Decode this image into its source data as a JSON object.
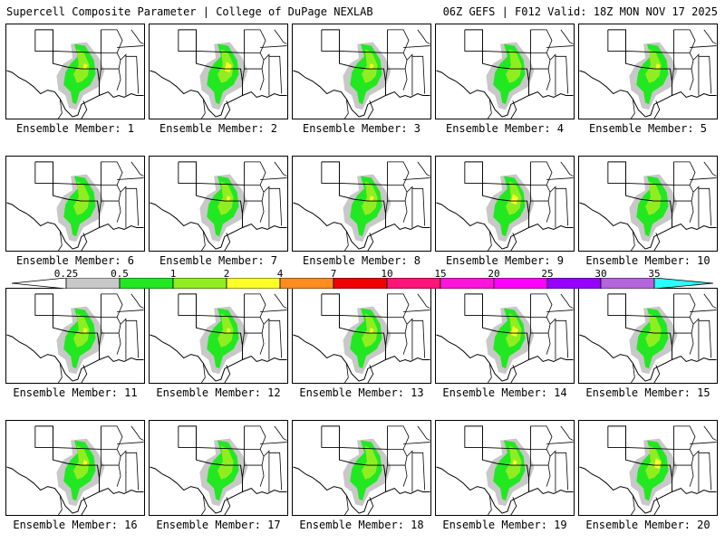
{
  "header": {
    "title": "Supercell Composite Parameter | College of DuPage NEXLAB",
    "run_info": "06Z GEFS | F012 Valid: 18Z MON NOV 17 2025"
  },
  "members": [
    {
      "label": "Ensemble Member: 1",
      "member": 1,
      "intensity": "moderate"
    },
    {
      "label": "Ensemble Member: 2",
      "member": 2,
      "intensity": "high"
    },
    {
      "label": "Ensemble Member: 3",
      "member": 3,
      "intensity": "moderate"
    },
    {
      "label": "Ensemble Member: 4",
      "member": 4,
      "intensity": "low"
    },
    {
      "label": "Ensemble Member: 5",
      "member": 5,
      "intensity": "moderate"
    },
    {
      "label": "Ensemble Member: 6",
      "member": 6,
      "intensity": "low"
    },
    {
      "label": "Ensemble Member: 7",
      "member": 7,
      "intensity": "moderate"
    },
    {
      "label": "Ensemble Member: 8",
      "member": 8,
      "intensity": "moderate"
    },
    {
      "label": "Ensemble Member: 9",
      "member": 9,
      "intensity": "high"
    },
    {
      "label": "Ensemble Member: 10",
      "member": 10,
      "intensity": "low"
    },
    {
      "label": "Ensemble Member: 11",
      "member": 11,
      "intensity": "moderate"
    },
    {
      "label": "Ensemble Member: 12",
      "member": 12,
      "intensity": "moderate"
    },
    {
      "label": "Ensemble Member: 13",
      "member": 13,
      "intensity": "moderate"
    },
    {
      "label": "Ensemble Member: 14",
      "member": 14,
      "intensity": "high"
    },
    {
      "label": "Ensemble Member: 15",
      "member": 15,
      "intensity": "low"
    },
    {
      "label": "Ensemble Member: 16",
      "member": 16,
      "intensity": "moderate"
    },
    {
      "label": "Ensemble Member: 17",
      "member": 17,
      "intensity": "low"
    },
    {
      "label": "Ensemble Member: 18",
      "member": 18,
      "intensity": "low"
    },
    {
      "label": "Ensemble Member: 19",
      "member": 19,
      "intensity": "moderate"
    },
    {
      "label": "Ensemble Member: 20",
      "member": 20,
      "intensity": "high"
    }
  ],
  "colorbar": {
    "levels": [
      "0.25",
      "0.5",
      "1",
      "2",
      "4",
      "7",
      "10",
      "15",
      "20",
      "25",
      "30",
      "35"
    ],
    "colors": [
      "#ffffff",
      "#c8c8c8",
      "#22e822",
      "#90ee20",
      "#ffff28",
      "#ff8c1e",
      "#f00000",
      "#ff1478",
      "#ff14dc",
      "#ff00ff",
      "#9600ff",
      "#b464dc",
      "#28ffff"
    ]
  }
}
